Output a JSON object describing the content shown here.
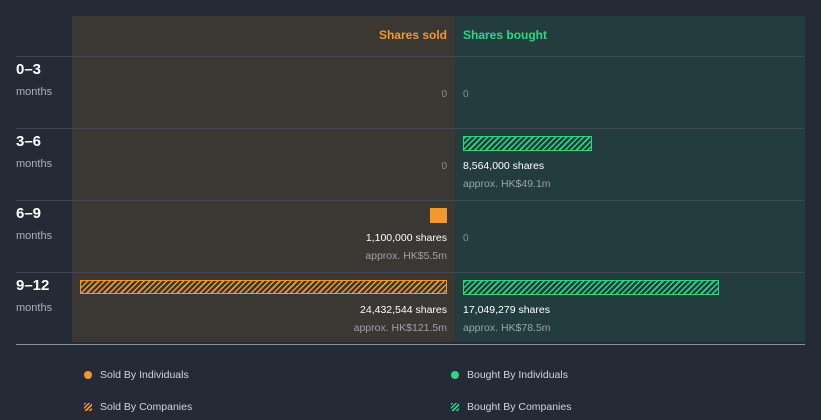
{
  "colors": {
    "sold": "#f3972f",
    "bought": "#2bd882",
    "sold_panel": "#3b3733",
    "bought_panel": "#233d3f",
    "background": "#242a36"
  },
  "chart_data": {
    "type": "bar",
    "title": "",
    "headers": {
      "sold": "Shares sold",
      "bought": "Shares bought"
    },
    "max_shares": 24432544,
    "rows": [
      {
        "period": "0–3",
        "unit": "months",
        "sold_label": "0",
        "bought_label": "0",
        "sold": {
          "individuals": 0,
          "companies": 0
        },
        "bought": {
          "individuals": 0,
          "companies": 0
        }
      },
      {
        "period": "3–6",
        "unit": "months",
        "sold_label": "0",
        "bought_shares": "8,564,000 shares",
        "bought_value": "approx. HK$49.1m",
        "sold": {
          "individuals": 0,
          "companies": 0
        },
        "bought": {
          "individuals": 0,
          "companies": 8564000
        }
      },
      {
        "period": "6–9",
        "unit": "months",
        "sold_shares": "1,100,000 shares",
        "sold_value": "approx. HK$5.5m",
        "bought_label": "0",
        "sold": {
          "individuals": 1100000,
          "companies": 0
        },
        "bought": {
          "individuals": 0,
          "companies": 0
        }
      },
      {
        "period": "9–12",
        "unit": "months",
        "sold_shares": "24,432,544 shares",
        "sold_value": "approx. HK$121.5m",
        "bought_shares": "17,049,279 shares",
        "bought_value": "approx. HK$78.5m",
        "sold": {
          "individuals": 0,
          "companies": 24432544
        },
        "bought": {
          "individuals": 0,
          "companies": 17049279
        }
      }
    ],
    "legend": [
      {
        "label": "Sold By Individuals",
        "style": "dot",
        "color": "#f3972f"
      },
      {
        "label": "Bought By Individuals",
        "style": "dot",
        "color": "#2bd882"
      },
      {
        "label": "Sold By Companies",
        "style": "hatch",
        "color": "#f3972f"
      },
      {
        "label": "Bought By Companies",
        "style": "hatch",
        "color": "#2bd882"
      }
    ]
  }
}
